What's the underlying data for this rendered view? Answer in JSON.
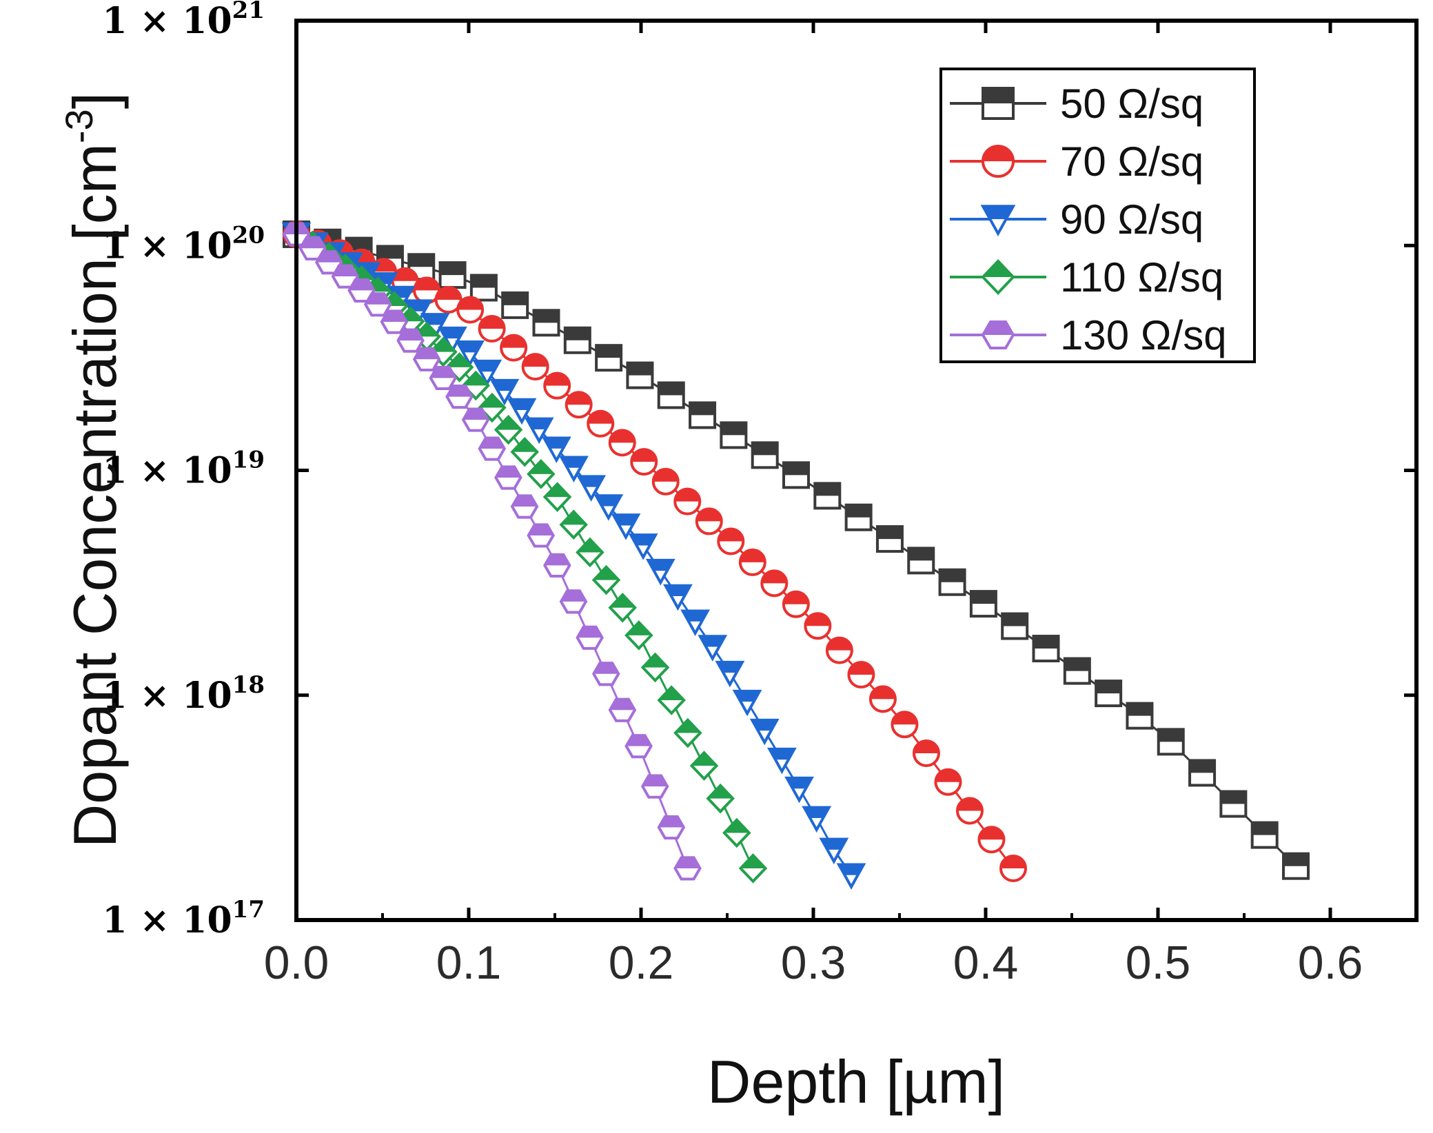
{
  "chart_data": {
    "type": "scatter",
    "title": "",
    "xlabel": "Depth [µm]",
    "ylabel": "Dopant Concentration [cm-3]",
    "ylabel_main": "Dopant Concentration [cm",
    "ylabel_sup": "-3",
    "ylabel_close": "]",
    "xlim": [
      0.0,
      0.65
    ],
    "ylim": [
      1e+17,
      1e+21
    ],
    "yscale": "log",
    "x_ticks": [
      0.0,
      0.1,
      0.2,
      0.3,
      0.4,
      0.5,
      0.6
    ],
    "x_tick_labels": [
      "0.0",
      "0.1",
      "0.2",
      "0.3",
      "0.4",
      "0.5",
      "0.6"
    ],
    "y_ticks": [
      {
        "value": 1e+21,
        "base": "1 × 10",
        "exp": "21"
      },
      {
        "value": 1e+20,
        "base": "1 × 10",
        "exp": "20"
      },
      {
        "value": 1e+19,
        "base": "1 × 10",
        "exp": "19"
      },
      {
        "value": 1e+18,
        "base": "1 × 10",
        "exp": "18"
      },
      {
        "value": 1e+17,
        "base": "1 × 10",
        "exp": "17"
      }
    ],
    "legend_position": "top-right",
    "series": [
      {
        "name": "50 Ω/sq",
        "color": "#3a3a3a",
        "marker": "square",
        "profile": {
          "x_points": [
            0.0,
            0.1,
            0.2,
            0.3,
            0.4,
            0.5,
            0.58
          ],
          "log_values": [
            20.05,
            19.85,
            19.42,
            18.93,
            18.4,
            17.85,
            17.24
          ]
        },
        "x_end": 0.58,
        "n_points": 33
      },
      {
        "name": "70 Ω/sq",
        "color": "#e8312f",
        "marker": "circle",
        "profile": {
          "x_points": [
            0.0,
            0.1,
            0.2,
            0.25,
            0.3,
            0.35,
            0.416
          ],
          "log_values": [
            20.05,
            19.72,
            19.05,
            18.7,
            18.33,
            17.9,
            17.23
          ]
        },
        "x_end": 0.416,
        "n_points": 34
      },
      {
        "name": "90 Ω/sq",
        "color": "#1f68d4",
        "marker": "triangle-down",
        "profile": {
          "x_points": [
            0.0,
            0.05,
            0.1,
            0.2,
            0.25,
            0.3,
            0.32
          ],
          "log_values": [
            20.05,
            19.83,
            19.53,
            18.68,
            18.12,
            17.48,
            17.2
          ]
        },
        "x_end": 0.322,
        "n_points": 33
      },
      {
        "name": "110 Ω/sq",
        "color": "#22a04a",
        "marker": "diamond",
        "profile": {
          "x_points": [
            0.0,
            0.05,
            0.1,
            0.15,
            0.2,
            0.25,
            0.265
          ],
          "log_values": [
            20.05,
            19.78,
            19.42,
            18.9,
            18.25,
            17.48,
            17.23
          ]
        },
        "x_end": 0.265,
        "n_points": 29
      },
      {
        "name": "130 Ω/sq",
        "color": "#a56ed9",
        "marker": "hexagon",
        "profile": {
          "x_points": [
            0.0,
            0.05,
            0.1,
            0.15,
            0.2,
            0.227
          ],
          "log_values": [
            20.05,
            19.72,
            19.28,
            18.6,
            17.75,
            17.23
          ]
        },
        "x_end": 0.227,
        "n_points": 25
      }
    ]
  }
}
